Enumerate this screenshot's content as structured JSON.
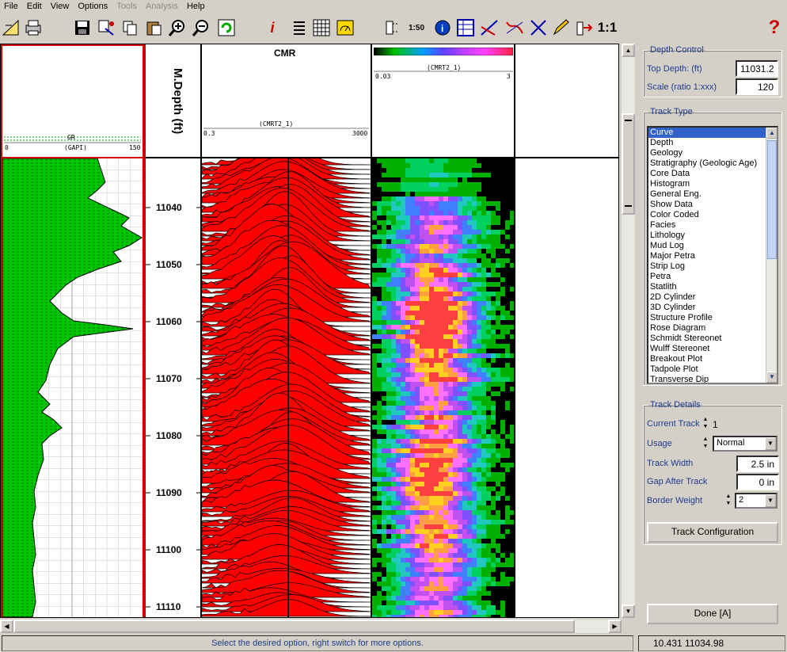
{
  "menu": [
    "File",
    "Edit",
    "View",
    "Options",
    "Tools",
    "Analysis",
    "Help"
  ],
  "menu_disabled": [
    "Tools",
    "Analysis"
  ],
  "toolbar": {
    "scale_button": "1:50",
    "ratio_button": "1:1",
    "info_icon": "i",
    "help_icon": "?"
  },
  "log": {
    "gr_track": {
      "curve": "GR",
      "unit": "(GAPI)",
      "min": "0",
      "max": "150"
    },
    "depth_track": {
      "title": "M.Depth (ft)",
      "labels": [
        "11040",
        "11050",
        "11060",
        "11070",
        "11080",
        "11090",
        "11100",
        "11110"
      ]
    },
    "cmr_track": {
      "title": "CMR",
      "curve": "(CMRT2_1)",
      "min": "0.3",
      "max": "3000"
    },
    "image_track": {
      "curve": "(CMRT2_1)",
      "min": "0.03",
      "max": "3"
    }
  },
  "depth_control": {
    "legend": "Depth Control",
    "top_depth_label": "Top Depth:  (ft)",
    "top_depth_value": "11031.24",
    "scale_label": "Scale (ratio 1:xxx)",
    "scale_value": "120"
  },
  "track_type": {
    "legend": "Track Type",
    "items": [
      "Curve",
      "Depth",
      "Geology",
      "Stratigraphy (Geologic Age)",
      "Core Data",
      "Histogram",
      "General Eng.",
      "Show Data",
      "Color Coded",
      "Facies",
      "Lithology",
      "Mud Log",
      "Major Petra",
      "Strip Log",
      "Petra",
      "Statlith",
      "2D Cylinder",
      "3D Cylinder",
      "Structure Profile",
      "Rose Diagram",
      "Schmidt Stereonet",
      "Wulff Stereonet",
      "Breakout Plot",
      "Tadpole Plot",
      "Transverse Dip"
    ],
    "selected": "Curve"
  },
  "track_details": {
    "legend": "Track Details",
    "current_track_label": "Current Track",
    "current_track_value": "1",
    "usage_label": "Usage",
    "usage_value": "Normal",
    "track_width_label": "Track Width",
    "track_width_value": "2.5 in",
    "gap_label": "Gap After Track",
    "gap_value": "0 in",
    "border_weight_label": "Border Weight",
    "border_weight_value": "2",
    "config_button": "Track Configuration"
  },
  "done_button": "Done [A]",
  "status": {
    "message": "Select the desired option, right switch for more options.",
    "coords": "10.431  11034.98"
  },
  "colors": {
    "gr_fill": "#00c800",
    "cmr_fill": "#ff0000",
    "accent_text": "#1e3c8c",
    "selection": "#3062c8"
  }
}
